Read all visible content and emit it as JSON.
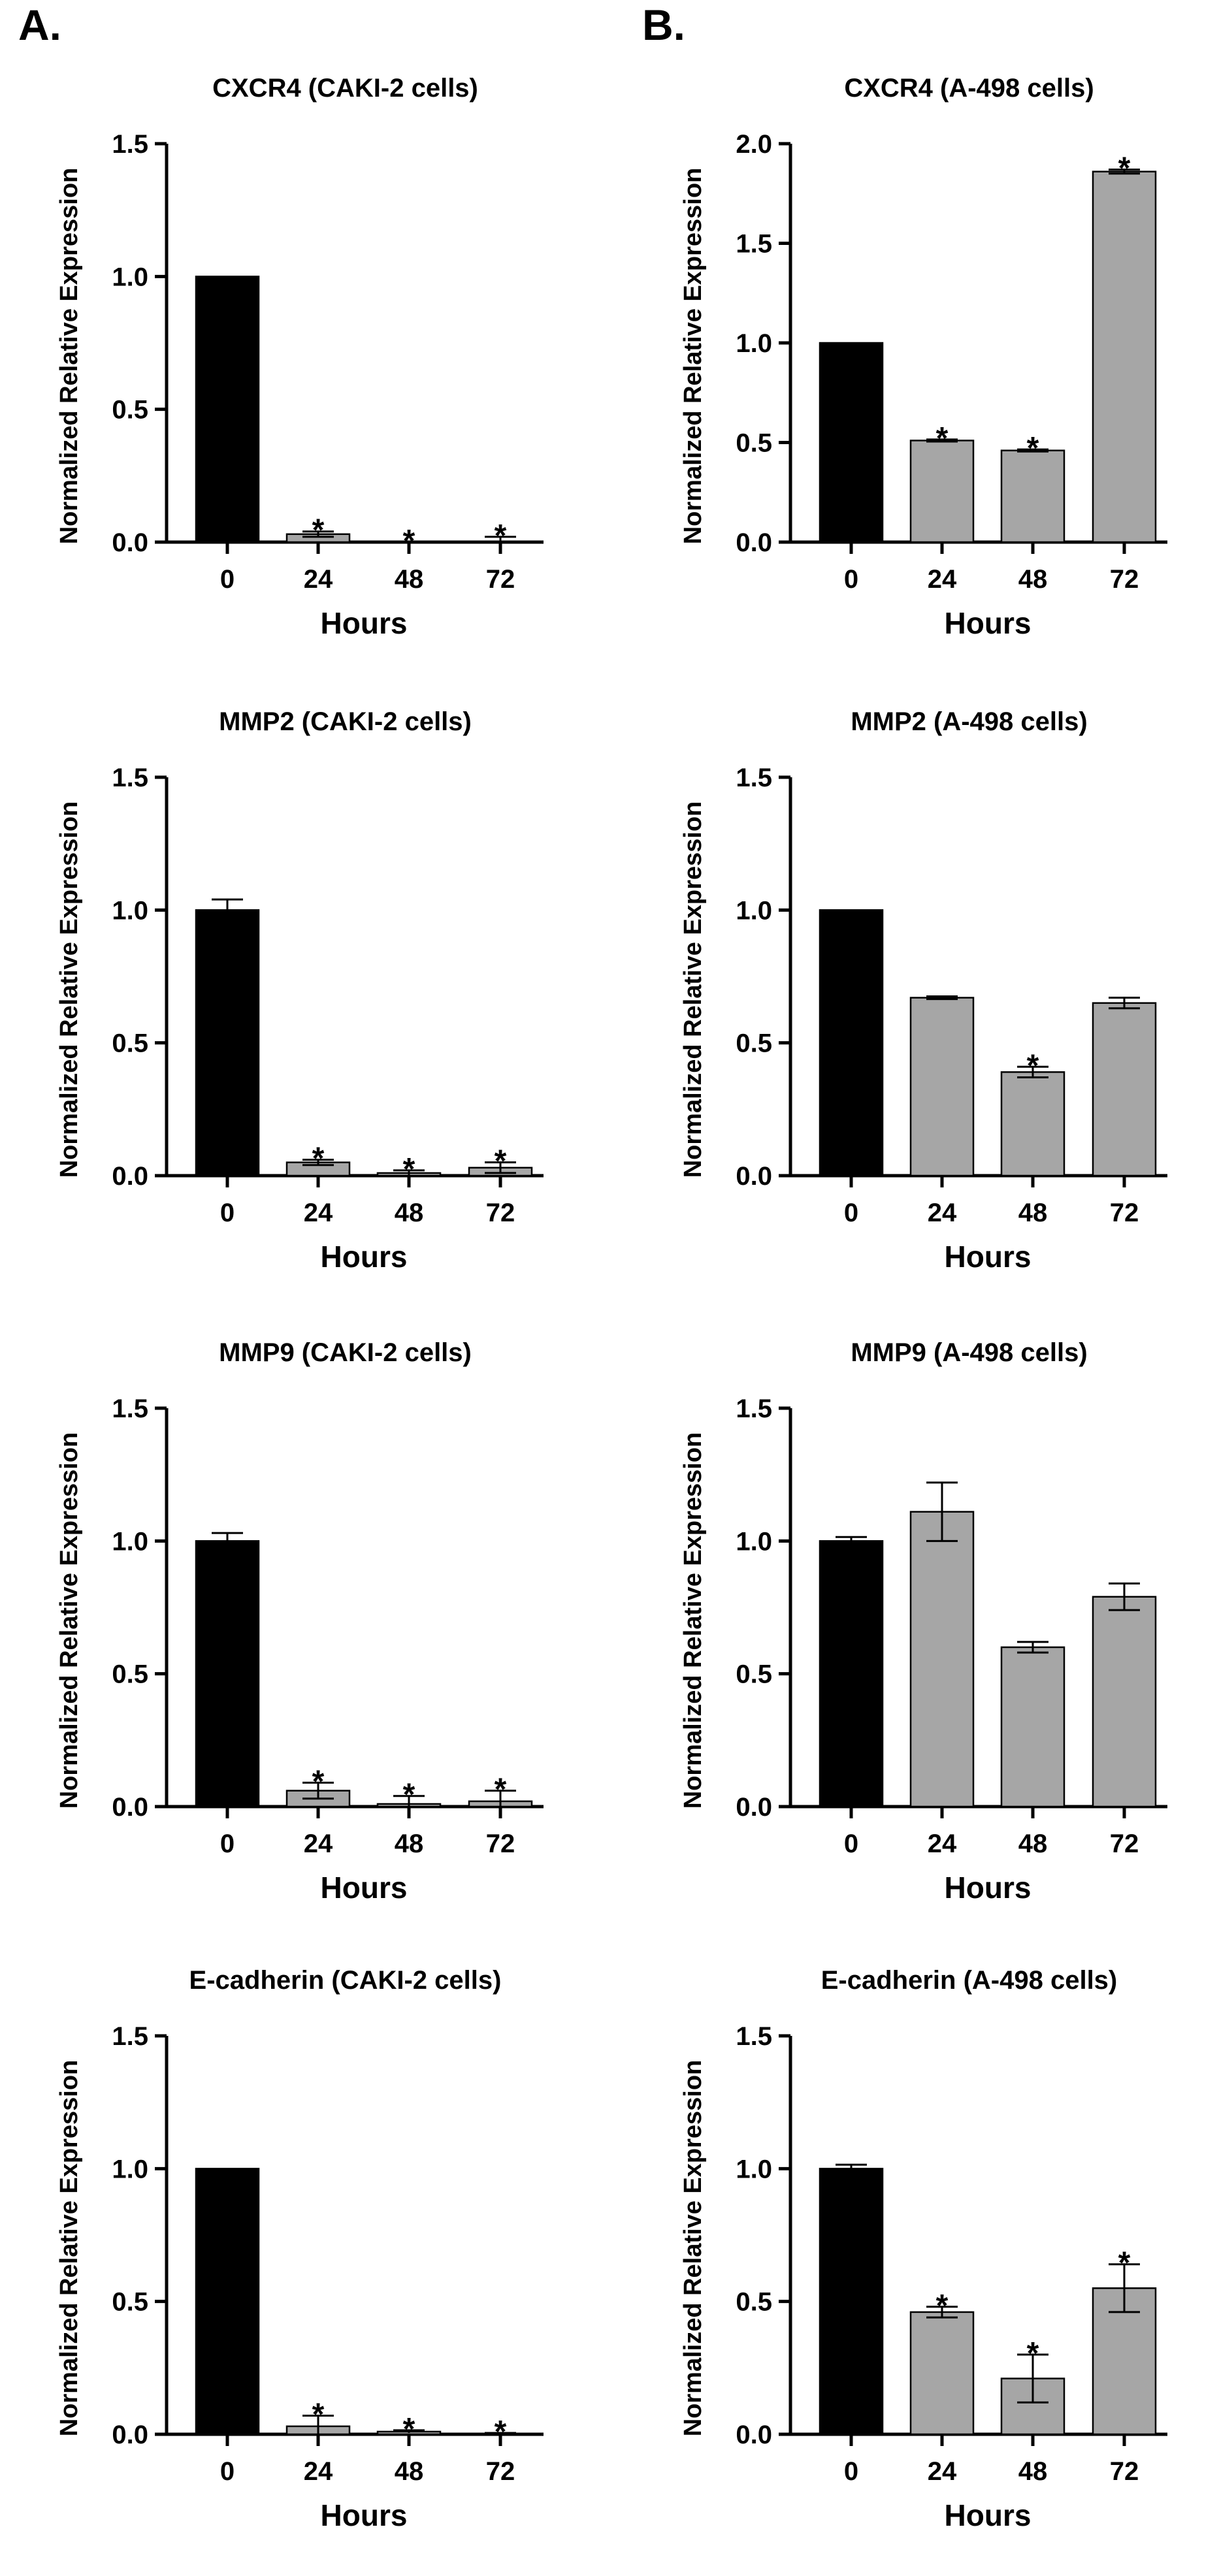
{
  "panels": {
    "a": "A.",
    "b": "B."
  },
  "colors": {
    "control": "#000000",
    "treated": "#a6a6a6",
    "axis": "#000000"
  },
  "chart_data": [
    {
      "id": "a1",
      "type": "bar",
      "title": "CXCR4 (CAKI-2 cells)",
      "xlabel": "Hours",
      "ylabel": "Normalized Relative Expression",
      "categories": [
        "0",
        "24",
        "48",
        "72"
      ],
      "values": [
        1.0,
        0.03,
        0.0,
        0.0
      ],
      "errors": [
        0,
        0.01,
        0.0,
        0.02
      ],
      "significant": [
        false,
        true,
        true,
        true
      ],
      "ylim": [
        0,
        1.5
      ],
      "yticks": [
        "0.0",
        "0.5",
        "1.0",
        "1.5"
      ],
      "ystep": 0.5
    },
    {
      "id": "b1",
      "type": "bar",
      "title": "CXCR4 (A-498 cells)",
      "xlabel": "Hours",
      "ylabel": "Normalized Relative Expression",
      "categories": [
        "0",
        "24",
        "48",
        "72"
      ],
      "values": [
        1.0,
        0.51,
        0.46,
        1.86
      ],
      "errors": [
        0,
        0.005,
        0.005,
        0.01
      ],
      "significant": [
        false,
        true,
        true,
        true
      ],
      "ylim": [
        0,
        2.0
      ],
      "yticks": [
        "0.0",
        "0.5",
        "1.0",
        "1.5",
        "2.0"
      ],
      "ystep": 0.5
    },
    {
      "id": "a2",
      "type": "bar",
      "title": "MMP2 (CAKI-2 cells)",
      "xlabel": "Hours",
      "ylabel": "Normalized Relative Expression",
      "categories": [
        "0",
        "24",
        "48",
        "72"
      ],
      "values": [
        1.0,
        0.05,
        0.01,
        0.03
      ],
      "errors": [
        0.04,
        0.01,
        0.01,
        0.02
      ],
      "significant": [
        false,
        true,
        true,
        true
      ],
      "ylim": [
        0,
        1.5
      ],
      "yticks": [
        "0.0",
        "0.5",
        "1.0",
        "1.5"
      ],
      "ystep": 0.5
    },
    {
      "id": "b2",
      "type": "bar",
      "title": "MMP2 (A-498 cells)",
      "xlabel": "Hours",
      "ylabel": "Normalized Relative Expression",
      "categories": [
        "0",
        "24",
        "48",
        "72"
      ],
      "values": [
        1.0,
        0.67,
        0.39,
        0.65
      ],
      "errors": [
        0,
        0.005,
        0.02,
        0.02
      ],
      "significant": [
        false,
        false,
        true,
        false
      ],
      "ylim": [
        0,
        1.5
      ],
      "yticks": [
        "0.0",
        "0.5",
        "1.0",
        "1.5"
      ],
      "ystep": 0.5
    },
    {
      "id": "a3",
      "type": "bar",
      "title": "MMP9 (CAKI-2 cells)",
      "xlabel": "Hours",
      "ylabel": "Normalized Relative Expression",
      "categories": [
        "0",
        "24",
        "48",
        "72"
      ],
      "values": [
        1.0,
        0.06,
        0.01,
        0.02
      ],
      "errors": [
        0.03,
        0.03,
        0.03,
        0.04
      ],
      "significant": [
        false,
        true,
        true,
        true
      ],
      "ylim": [
        0,
        1.5
      ],
      "yticks": [
        "0.0",
        "0.5",
        "1.0",
        "1.5"
      ],
      "ystep": 0.5
    },
    {
      "id": "b3",
      "type": "bar",
      "title": "MMP9 (A-498 cells)",
      "xlabel": "Hours",
      "ylabel": "Normalized Relative Expression",
      "categories": [
        "0",
        "24",
        "48",
        "72"
      ],
      "values": [
        1.0,
        1.11,
        0.6,
        0.79
      ],
      "errors": [
        0.015,
        0.11,
        0.02,
        0.05
      ],
      "significant": [
        false,
        false,
        false,
        false
      ],
      "ylim": [
        0,
        1.5
      ],
      "yticks": [
        "0.0",
        "0.5",
        "1.0",
        "1.5"
      ],
      "ystep": 0.5
    },
    {
      "id": "a4",
      "type": "bar",
      "title": "E-cadherin (CAKI-2 cells)",
      "xlabel": "Hours",
      "ylabel": "Normalized Relative Expression",
      "categories": [
        "0",
        "24",
        "48",
        "72"
      ],
      "values": [
        1.0,
        0.03,
        0.01,
        0.0
      ],
      "errors": [
        0,
        0.04,
        0.005,
        0.005
      ],
      "significant": [
        false,
        true,
        true,
        true
      ],
      "ylim": [
        0,
        1.5
      ],
      "yticks": [
        "0.0",
        "0.5",
        "1.0",
        "1.5"
      ],
      "ystep": 0.5
    },
    {
      "id": "b4",
      "type": "bar",
      "title": "E-cadherin (A-498 cells)",
      "xlabel": "Hours",
      "ylabel": "Normalized Relative Expression",
      "categories": [
        "0",
        "24",
        "48",
        "72"
      ],
      "values": [
        1.0,
        0.46,
        0.21,
        0.55
      ],
      "errors": [
        0.015,
        0.02,
        0.09,
        0.09
      ],
      "significant": [
        false,
        true,
        true,
        true
      ],
      "ylim": [
        0,
        1.5
      ],
      "yticks": [
        "0.0",
        "0.5",
        "1.0",
        "1.5"
      ],
      "ystep": 0.5
    }
  ]
}
